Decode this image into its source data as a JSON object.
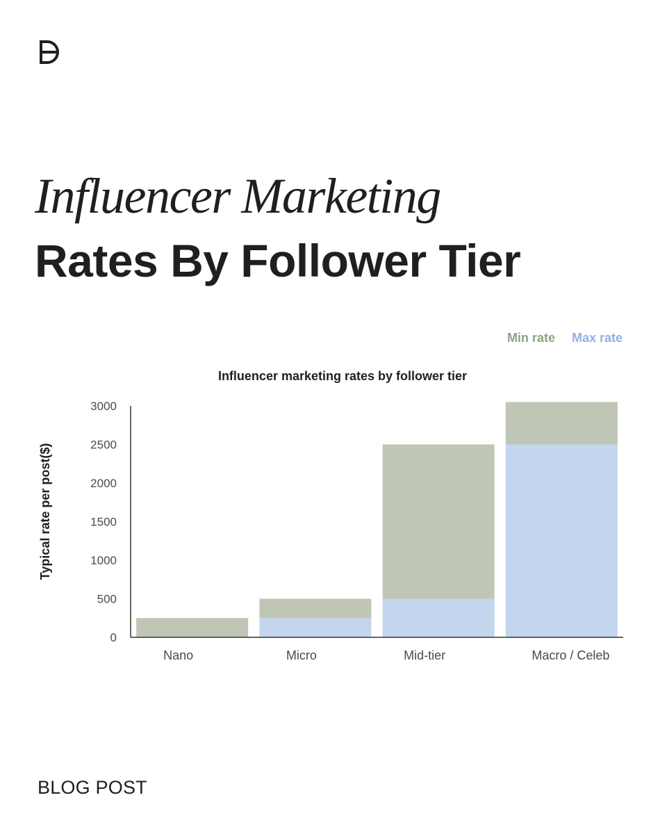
{
  "brand": {
    "logo_icon": "brand-logo-icon"
  },
  "heading": {
    "line1": "Influencer Marketing",
    "line2": "Rates By Follower Tier"
  },
  "legend": {
    "min_label": "Min rate",
    "max_label": "Max rate",
    "min_color": "#8ea37f",
    "max_color": "#8fb0e8"
  },
  "chart_data": {
    "type": "bar",
    "stacked": true,
    "title": "Influencer marketing rates by follower tier",
    "xlabel": "",
    "ylabel": "Typical rate per post($)",
    "categories": [
      "Nano",
      "Micro",
      "Mid-tier",
      "Macro / Celeb"
    ],
    "series": [
      {
        "name": "Max rate",
        "color": "#c4d5ee",
        "values": [
          0,
          250,
          500,
          2500
        ]
      },
      {
        "name": "Min rate",
        "color": "#bfc6b6",
        "values": [
          250,
          250,
          2000,
          550
        ]
      }
    ],
    "ylim": [
      0,
      3000
    ],
    "yticks": [
      0,
      500,
      1000,
      1500,
      2000,
      2500,
      3000
    ],
    "grid": false,
    "legend_position": "top-right"
  },
  "footer": {
    "label": "BLOG POST"
  }
}
